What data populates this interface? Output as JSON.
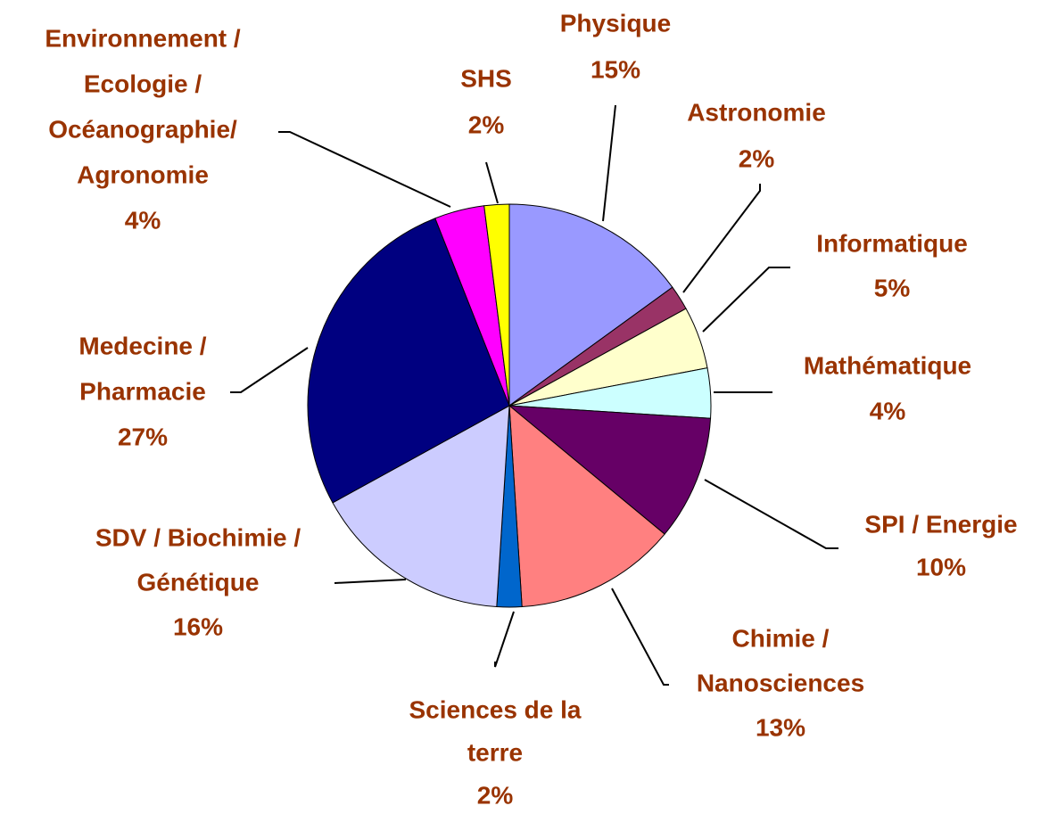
{
  "chart_data": {
    "type": "pie",
    "categories": [
      [
        "Physique"
      ],
      [
        "Astronomie"
      ],
      [
        "Informatique"
      ],
      [
        "Mathématique"
      ],
      [
        "SPI / Energie"
      ],
      [
        "Chimie /",
        "Nanosciences"
      ],
      [
        "Sciences de la",
        "terre"
      ],
      [
        "SDV / Biochimie /",
        "Génétique"
      ],
      [
        "Medecine /",
        "Pharmacie"
      ],
      [
        "Environnement  /",
        "Ecologie /",
        "Océanographie/",
        "Agronomie"
      ],
      [
        "SHS"
      ]
    ],
    "values": [
      15,
      2,
      5,
      4,
      10,
      13,
      2,
      16,
      27,
      4,
      2
    ],
    "value_labels": [
      "15%",
      "2%",
      "5%",
      "4%",
      "10%",
      "13%",
      "2%",
      "16%",
      "27%",
      "4%",
      "2%"
    ],
    "colors": [
      "#9999ff",
      "#993366",
      "#ffffcc",
      "#ccffff",
      "#660066",
      "#ff8080",
      "#0066cc",
      "#ccccff",
      "#000080",
      "#ff00ff",
      "#ffff00"
    ]
  }
}
